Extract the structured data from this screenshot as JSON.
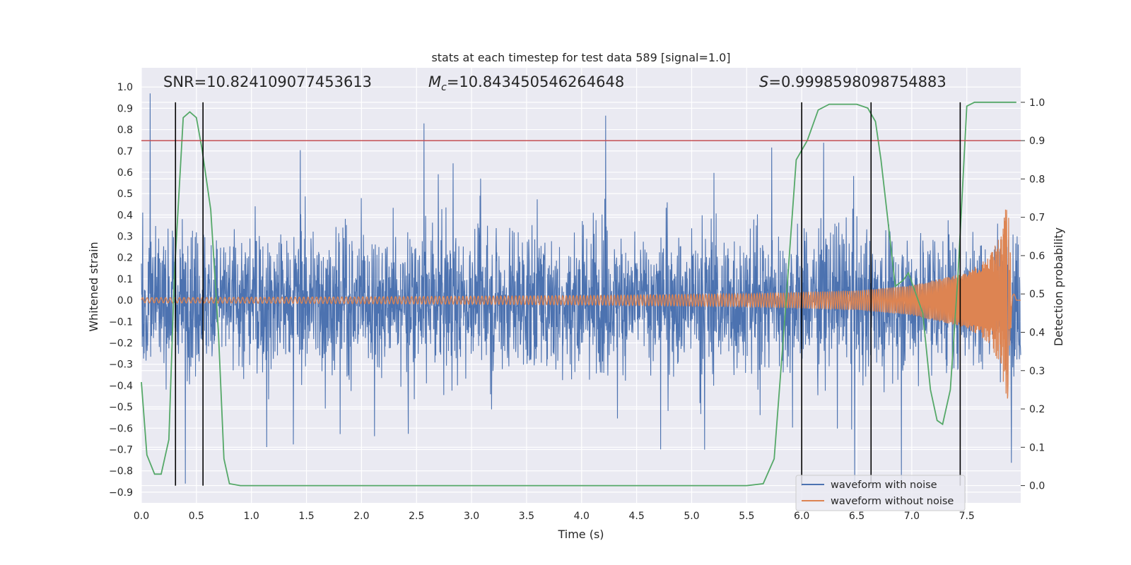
{
  "chart_data": {
    "type": "line",
    "title": "stats at each timestep for test data 589 [signal=1.0]",
    "xlabel": "Time (s)",
    "ylabel": "Whitened strain",
    "ylabel_right": "Detection probability",
    "xlim": [
      0.0,
      7.99
    ],
    "ylim": [
      -0.95,
      1.09
    ],
    "ylim_right": [
      -0.045,
      1.09
    ],
    "xticks": [
      "0.0",
      "0.5",
      "1.0",
      "1.5",
      "2.0",
      "2.5",
      "3.0",
      "3.5",
      "4.0",
      "4.5",
      "5.0",
      "5.5",
      "6.0",
      "6.5",
      "7.0",
      "7.5"
    ],
    "yticks": [
      "1.0",
      "0.9",
      "0.8",
      "0.7",
      "0.6",
      "0.5",
      "0.4",
      "0.3",
      "0.2",
      "0.1",
      "0.0",
      "−0.1",
      "−0.2",
      "−0.3",
      "−0.4",
      "−0.5",
      "−0.6",
      "−0.7",
      "−0.8",
      "−0.9"
    ],
    "yticks_right": [
      "1.0",
      "0.9",
      "0.8",
      "0.7",
      "0.6",
      "0.5",
      "0.4",
      "0.3",
      "0.2",
      "0.1",
      "0.0"
    ],
    "annotations": {
      "snr": "SNR=10.824109077453613",
      "mc_symbol": "M",
      "mc_sub": "c",
      "mc_value": "=10.843450546264648",
      "s_symbol": "S",
      "s_value": "=0.9998598098754883"
    },
    "threshold_right": 0.9,
    "vertical_lines": [
      0.31,
      0.56,
      6.0,
      6.63,
      7.44
    ],
    "series": [
      {
        "name": "waveform with noise",
        "color": "#4c72b0",
        "note_envelope": {
          "typical_abs": 0.45,
          "max": 1.0,
          "min": -0.84
        }
      },
      {
        "name": "waveform without noise",
        "color": "#dd8452",
        "amplitude_points": [
          [
            0.0,
            0.012
          ],
          [
            2.0,
            0.016
          ],
          [
            4.0,
            0.022
          ],
          [
            5.5,
            0.03
          ],
          [
            6.5,
            0.045
          ],
          [
            7.0,
            0.07
          ],
          [
            7.5,
            0.13
          ],
          [
            7.7,
            0.2
          ],
          [
            7.8,
            0.3
          ],
          [
            7.87,
            0.48
          ],
          [
            7.89,
            0.3
          ],
          [
            7.92,
            0.05
          ],
          [
            7.95,
            0.0
          ]
        ]
      },
      {
        "name": "detection probability",
        "axis": "right",
        "color": "#55a868",
        "points": [
          [
            0.0,
            0.27
          ],
          [
            0.05,
            0.08
          ],
          [
            0.12,
            0.03
          ],
          [
            0.18,
            0.03
          ],
          [
            0.25,
            0.12
          ],
          [
            0.3,
            0.55
          ],
          [
            0.38,
            0.96
          ],
          [
            0.44,
            0.975
          ],
          [
            0.5,
            0.96
          ],
          [
            0.55,
            0.88
          ],
          [
            0.63,
            0.72
          ],
          [
            0.7,
            0.4
          ],
          [
            0.75,
            0.07
          ],
          [
            0.8,
            0.005
          ],
          [
            0.9,
            0.0
          ],
          [
            5.5,
            0.0
          ],
          [
            5.65,
            0.005
          ],
          [
            5.75,
            0.07
          ],
          [
            5.85,
            0.45
          ],
          [
            5.95,
            0.85
          ],
          [
            6.05,
            0.9
          ],
          [
            6.15,
            0.98
          ],
          [
            6.25,
            0.995
          ],
          [
            6.4,
            0.995
          ],
          [
            6.5,
            0.995
          ],
          [
            6.6,
            0.985
          ],
          [
            6.67,
            0.95
          ],
          [
            6.72,
            0.85
          ],
          [
            6.78,
            0.7
          ],
          [
            6.85,
            0.52
          ],
          [
            6.92,
            0.535
          ],
          [
            6.97,
            0.555
          ],
          [
            7.0,
            0.53
          ],
          [
            7.1,
            0.45
          ],
          [
            7.17,
            0.25
          ],
          [
            7.23,
            0.17
          ],
          [
            7.28,
            0.16
          ],
          [
            7.35,
            0.25
          ],
          [
            7.42,
            0.55
          ],
          [
            7.5,
            0.99
          ],
          [
            7.57,
            1.0
          ],
          [
            7.95,
            1.0
          ]
        ]
      }
    ]
  },
  "legend": {
    "items": [
      {
        "label": "waveform with noise",
        "color": "#4c72b0"
      },
      {
        "label": "waveform without noise",
        "color": "#dd8452"
      }
    ]
  },
  "colors": {
    "plot_background": "#eaeaf2",
    "grid": "#ffffff",
    "noisy": "#4c72b0",
    "clean": "#dd8452",
    "probability": "#55a868",
    "threshold": "#c44e52",
    "markers": "#000000"
  }
}
